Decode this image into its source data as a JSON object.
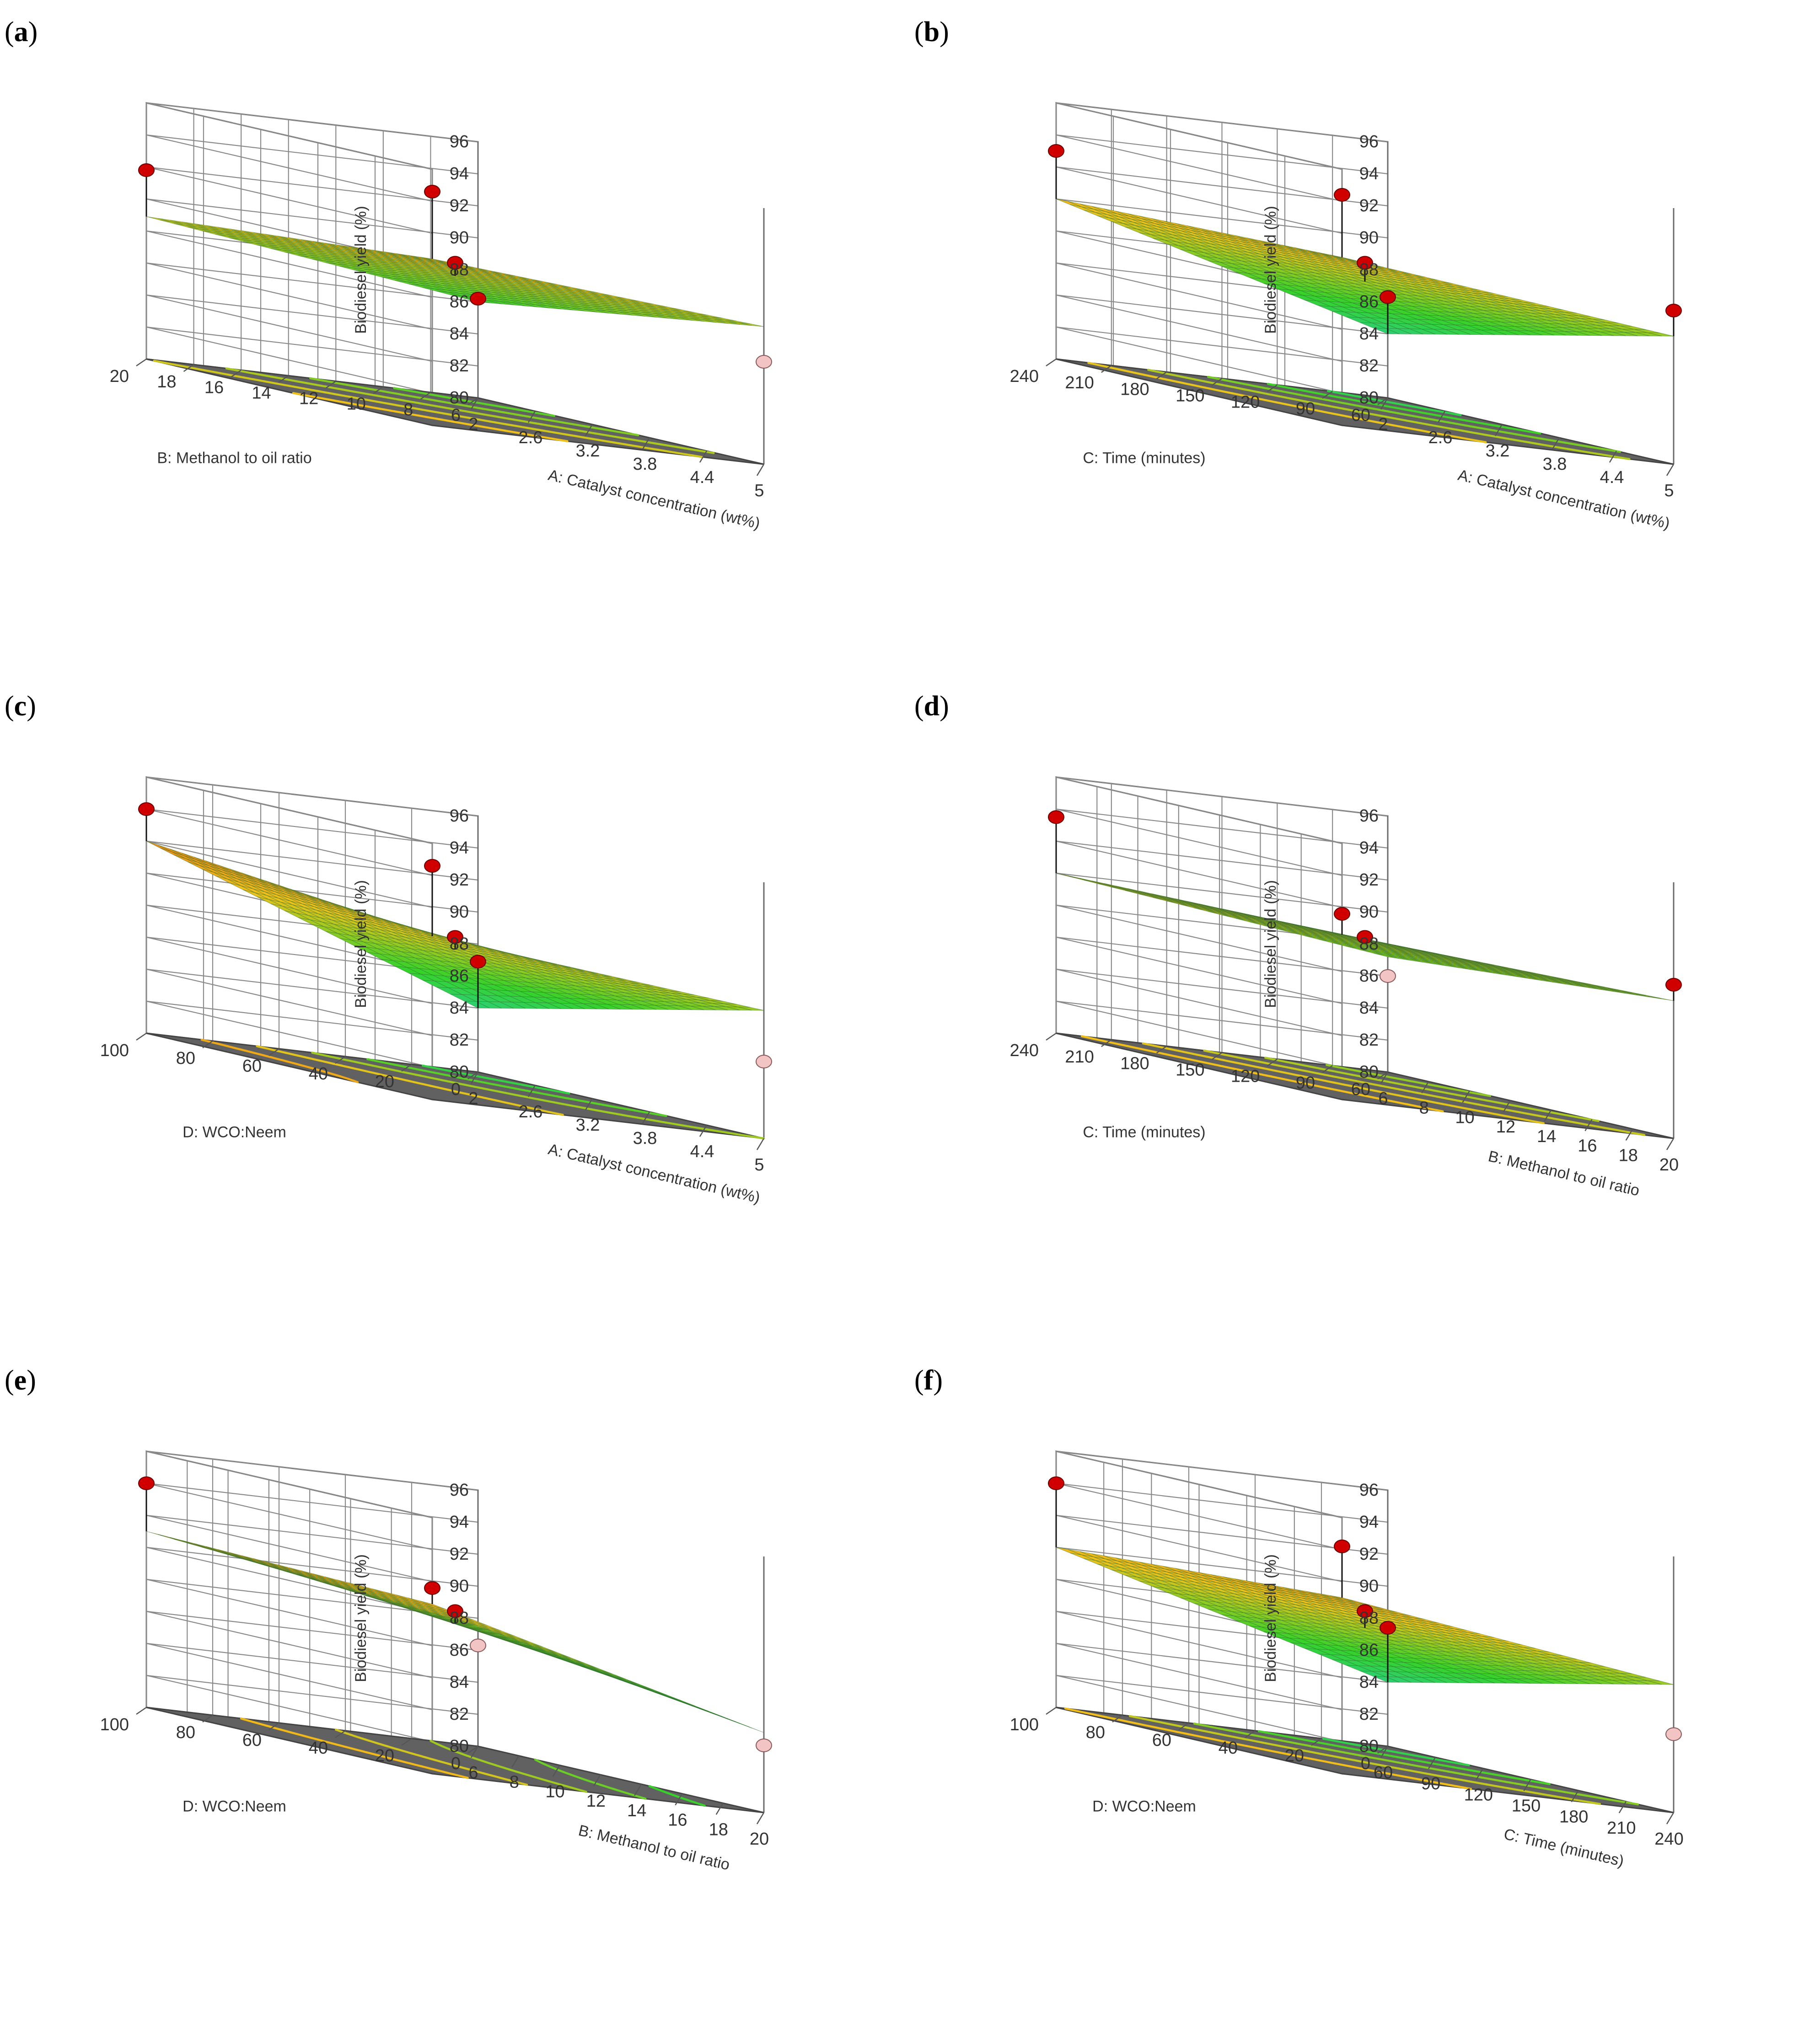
{
  "figure": {
    "panels": [
      {
        "label": "a",
        "zaxis_label": "Biodiesel yield (%)",
        "x_axis_label": "A: Catalyst concentration (wt%)",
        "x_ticks": [
          "2",
          "2.6",
          "3.2",
          "3.8",
          "4.4",
          "5"
        ],
        "y_axis_label": "B: Methanol to oil ratio",
        "y_ticks": [
          "6",
          "8",
          "10",
          "12",
          "14",
          "16",
          "18",
          "20"
        ],
        "z_ticks": [
          "80",
          "82",
          "84",
          "86",
          "88",
          "90",
          "92",
          "94",
          "96"
        ]
      },
      {
        "label": "b",
        "zaxis_label": "Biodiesel yield (%)",
        "x_axis_label": "A: Catalyst concentration (wt%)",
        "x_ticks": [
          "2",
          "2.6",
          "3.2",
          "3.8",
          "4.4",
          "5"
        ],
        "y_axis_label": "C: Time (minutes)",
        "y_ticks": [
          "60",
          "90",
          "120",
          "150",
          "180",
          "210",
          "240"
        ],
        "z_ticks": [
          "80",
          "82",
          "84",
          "86",
          "88",
          "90",
          "92",
          "94",
          "96"
        ]
      },
      {
        "label": "c",
        "zaxis_label": "Biodiesel yield (%)",
        "x_axis_label": "A: Catalyst concentration (wt%)",
        "x_ticks": [
          "2",
          "2.6",
          "3.2",
          "3.8",
          "4.4",
          "5"
        ],
        "y_axis_label": "D: WCO:Neem",
        "y_ticks": [
          "0",
          "20",
          "40",
          "60",
          "80",
          "100"
        ],
        "z_ticks": [
          "80",
          "82",
          "84",
          "86",
          "88",
          "90",
          "92",
          "94",
          "96"
        ]
      },
      {
        "label": "d",
        "zaxis_label": "Biodiesel yield (%)",
        "x_axis_label": "B: Methanol to oil ratio",
        "x_ticks": [
          "6",
          "8",
          "10",
          "12",
          "14",
          "16",
          "18",
          "20"
        ],
        "y_axis_label": "C: Time (minutes)",
        "y_ticks": [
          "60",
          "90",
          "120",
          "150",
          "180",
          "210",
          "240"
        ],
        "z_ticks": [
          "80",
          "82",
          "84",
          "86",
          "88",
          "90",
          "92",
          "94",
          "96"
        ]
      },
      {
        "label": "e",
        "zaxis_label": "Biodiesel yield (%)",
        "x_axis_label": "B: Methanol to oil ratio",
        "x_ticks": [
          "6",
          "8",
          "10",
          "12",
          "14",
          "16",
          "18",
          "20"
        ],
        "y_axis_label": "D: WCO:Neem",
        "y_ticks": [
          "0",
          "20",
          "40",
          "60",
          "80",
          "100"
        ],
        "z_ticks": [
          "80",
          "82",
          "84",
          "86",
          "88",
          "90",
          "92",
          "94",
          "96"
        ]
      },
      {
        "label": "f",
        "zaxis_label": "Biodiesel yield (%)",
        "x_axis_label": "C: Time (minutes)",
        "x_ticks": [
          "60",
          "90",
          "120",
          "150",
          "180",
          "210",
          "240"
        ],
        "y_axis_label": "D: WCO:Neem",
        "y_ticks": [
          "0",
          "20",
          "40",
          "60",
          "80",
          "100"
        ],
        "z_ticks": [
          "80",
          "82",
          "84",
          "86",
          "88",
          "90",
          "92",
          "94",
          "96"
        ]
      }
    ]
  },
  "colors": {
    "floor": "#616161",
    "point_above": "#d00000",
    "point_below": "#f2c4c4",
    "surface_low": "#1fd0c0",
    "surface_mid": "#36d22a",
    "surface_high": "#f0c21a",
    "surface_top": "#f08a10"
  },
  "chart_data": [
    {
      "type": "surface3d",
      "panel": "a",
      "xlabel": "A: Catalyst concentration (wt%)",
      "ylabel": "B: Methanol to oil ratio",
      "zlabel": "Biodiesel yield (%)",
      "xlim": [
        2,
        5
      ],
      "ylim": [
        6,
        20
      ],
      "zlim": [
        80,
        96
      ],
      "surface_corners": {
        "x_min_y_min": 86.0,
        "x_max_y_min": 88.6,
        "x_min_y_max": 88.9,
        "x_max_y_max": 90.4
      },
      "design_points": [
        {
          "x": 2,
          "y": 20,
          "z": 91.8,
          "above_surface": true
        },
        {
          "x": 3.5,
          "y": 13,
          "z": 89.3,
          "above_surface": true
        },
        {
          "x": 2,
          "y": 6,
          "z": 86.2,
          "above_surface": true
        },
        {
          "x": 5,
          "y": 20,
          "z": 94.6,
          "above_surface": true
        },
        {
          "x": 5,
          "y": 6,
          "z": 86.4,
          "above_surface": false
        }
      ]
    },
    {
      "type": "surface3d",
      "panel": "b",
      "xlabel": "A: Catalyst concentration (wt%)",
      "ylabel": "C: Time (minutes)",
      "zlabel": "Biodiesel yield (%)",
      "xlim": [
        2,
        5
      ],
      "ylim": [
        60,
        240
      ],
      "zlim": [
        80,
        96
      ],
      "surface_corners": {
        "x_min_y_min": 84.0,
        "x_max_y_min": 88.0,
        "x_min_y_max": 90.0,
        "x_max_y_max": 90.5
      },
      "design_points": [
        {
          "x": 2,
          "y": 240,
          "z": 93.0,
          "above_surface": true
        },
        {
          "x": 3.5,
          "y": 150,
          "z": 89.3,
          "above_surface": true
        },
        {
          "x": 2,
          "y": 60,
          "z": 86.3,
          "above_surface": true
        },
        {
          "x": 5,
          "y": 240,
          "z": 94.4,
          "above_surface": true
        },
        {
          "x": 5,
          "y": 60,
          "z": 89.6,
          "above_surface": true
        }
      ]
    },
    {
      "type": "surface3d",
      "panel": "c",
      "xlabel": "A: Catalyst concentration (wt%)",
      "ylabel": "D: WCO:Neem",
      "zlabel": "Biodiesel yield (%)",
      "xlim": [
        2,
        5
      ],
      "ylim": [
        0,
        100
      ],
      "zlim": [
        80,
        96
      ],
      "surface_corners": {
        "x_min_y_min": 84.0,
        "x_max_y_min": 88.0,
        "x_min_y_max": 92.0,
        "x_max_y_max": 90.2
      },
      "design_points": [
        {
          "x": 2,
          "y": 100,
          "z": 94.0,
          "above_surface": true
        },
        {
          "x": 3.5,
          "y": 50,
          "z": 89.3,
          "above_surface": true
        },
        {
          "x": 2,
          "y": 0,
          "z": 86.9,
          "above_surface": true
        },
        {
          "x": 5,
          "y": 100,
          "z": 94.6,
          "above_surface": true
        },
        {
          "x": 5,
          "y": 0,
          "z": 84.8,
          "above_surface": false
        }
      ]
    },
    {
      "type": "surface3d",
      "panel": "d",
      "xlabel": "B: Methanol to oil ratio",
      "ylabel": "C: Time (minutes)",
      "zlabel": "Biodiesel yield (%)",
      "xlim": [
        6,
        20
      ],
      "ylim": [
        60,
        240
      ],
      "zlim": [
        80,
        96
      ],
      "surface_corners": {
        "x_min_y_min": 87.2,
        "x_max_y_min": 88.6,
        "x_min_y_max": 90.0,
        "x_max_y_max": 90.3
      },
      "design_points": [
        {
          "x": 6,
          "y": 240,
          "z": 93.5,
          "above_surface": true
        },
        {
          "x": 13,
          "y": 150,
          "z": 89.3,
          "above_surface": true
        },
        {
          "x": 6,
          "y": 60,
          "z": 86.0,
          "above_surface": false
        },
        {
          "x": 20,
          "y": 240,
          "z": 91.6,
          "above_surface": true
        },
        {
          "x": 20,
          "y": 60,
          "z": 89.6,
          "above_surface": true
        }
      ]
    },
    {
      "type": "surface3d",
      "panel": "e",
      "xlabel": "B: Methanol to oil ratio",
      "ylabel": "D: WCO:Neem",
      "zlabel": "Biodiesel yield (%)",
      "xlim": [
        6,
        20
      ],
      "ylim": [
        0,
        100
      ],
      "zlim": [
        80,
        96
      ],
      "surface_corners": {
        "x_min_y_min": 87.5,
        "x_max_y_min": 85.0,
        "x_min_y_max": 91.0,
        "x_max_y_max": 90.6
      },
      "design_points": [
        {
          "x": 6,
          "y": 100,
          "z": 94.0,
          "above_surface": true
        },
        {
          "x": 13,
          "y": 50,
          "z": 89.3,
          "above_surface": true
        },
        {
          "x": 6,
          "y": 0,
          "z": 86.3,
          "above_surface": false
        },
        {
          "x": 20,
          "y": 100,
          "z": 91.6,
          "above_surface": true
        },
        {
          "x": 20,
          "y": 0,
          "z": 84.2,
          "above_surface": false
        }
      ]
    },
    {
      "type": "surface3d",
      "panel": "f",
      "xlabel": "C: Time (minutes)",
      "ylabel": "D: WCO:Neem",
      "zlabel": "Biodiesel yield (%)",
      "xlim": [
        60,
        240
      ],
      "ylim": [
        0,
        100
      ],
      "zlim": [
        80,
        96
      ],
      "surface_corners": {
        "x_min_y_min": 84.0,
        "x_max_y_min": 88.0,
        "x_min_y_max": 90.0,
        "x_max_y_max": 91.0
      },
      "design_points": [
        {
          "x": 60,
          "y": 100,
          "z": 94.0,
          "above_surface": true
        },
        {
          "x": 150,
          "y": 50,
          "z": 89.3,
          "above_surface": true
        },
        {
          "x": 60,
          "y": 0,
          "z": 87.4,
          "above_surface": true
        },
        {
          "x": 240,
          "y": 100,
          "z": 94.2,
          "above_surface": true
        },
        {
          "x": 240,
          "y": 0,
          "z": 84.9,
          "above_surface": false
        }
      ]
    }
  ]
}
